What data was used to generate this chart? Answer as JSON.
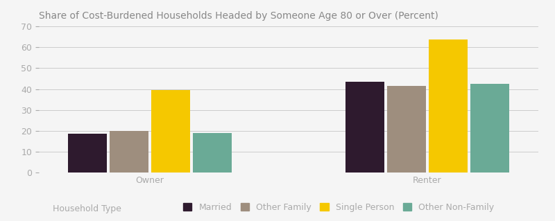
{
  "title": "Share of Cost-Burdened Households Headed by Someone Age 80 or Over (Percent)",
  "groups": [
    "Owner",
    "Renter"
  ],
  "categories": [
    "Married",
    "Other Family",
    "Single Person",
    "Other Non-Family"
  ],
  "values": {
    "Owner": [
      18.4,
      20.0,
      39.6,
      19.0
    ],
    "Renter": [
      43.5,
      41.5,
      63.8,
      42.5
    ]
  },
  "colors": [
    "#2e1a2e",
    "#9e8e7e",
    "#f5c800",
    "#6aaa96"
  ],
  "xlabel": "Household Type",
  "ylim": [
    0,
    70
  ],
  "yticks": [
    0,
    10,
    20,
    30,
    40,
    50,
    60,
    70
  ],
  "bar_width": 0.07,
  "background_color": "#f5f5f5",
  "title_color": "#888888",
  "axis_color": "#cccccc",
  "tick_color": "#aaaaaa",
  "legend_label": "Household Type",
  "title_fontsize": 10,
  "axis_fontsize": 9,
  "legend_fontsize": 9
}
